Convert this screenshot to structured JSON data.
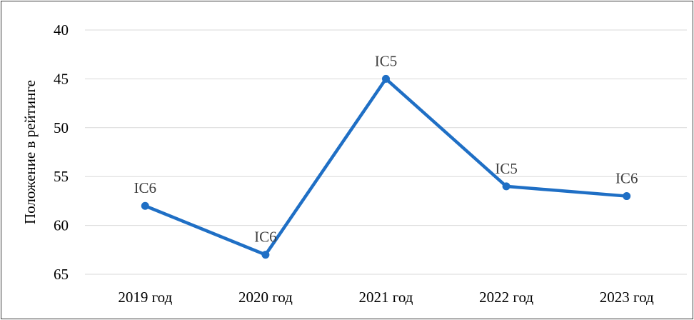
{
  "chart_data": {
    "type": "line",
    "title": "",
    "xlabel": "",
    "ylabel": "Положение в рейтинге",
    "categories": [
      "2019 год",
      "2020 год",
      "2021 год",
      "2022 год",
      "2023 год"
    ],
    "y_reversed": true,
    "ylim": [
      40,
      65
    ],
    "yticks": [
      "40",
      "45",
      "50",
      "55",
      "60",
      "65"
    ],
    "grid": true,
    "legend": "none",
    "series": [
      {
        "values": [
          58,
          63,
          45,
          56,
          57
        ],
        "data_labels": [
          "IC6",
          "IC6",
          "IC5",
          "IC5",
          "IC6"
        ],
        "color": "#1F6FC5"
      }
    ]
  }
}
